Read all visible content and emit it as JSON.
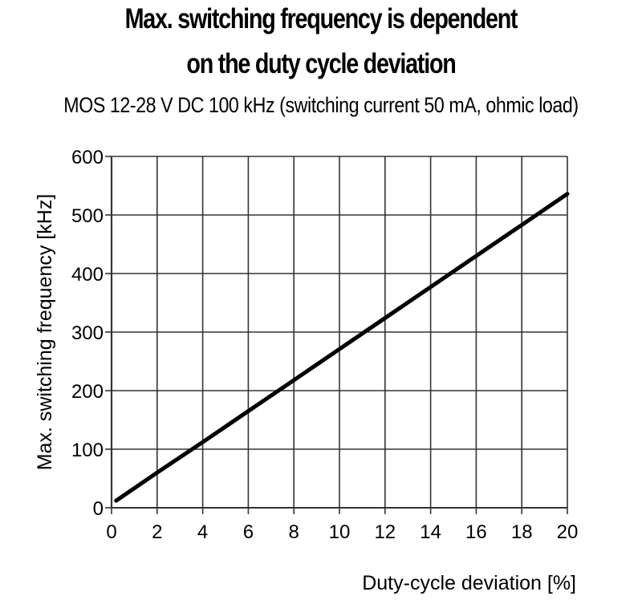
{
  "header": {
    "title_line1": "Max. switching frequency is dependent",
    "title_line2": "on the duty cycle deviation",
    "subtitle": "MOS 12-28 V DC 100 kHz (switching current 50 mA, ohmic load)"
  },
  "axes": {
    "xlabel": "Duty-cycle deviation [%]",
    "ylabel": "Max. switching frequency [kHz]",
    "x_ticks": [
      "0",
      "2",
      "4",
      "6",
      "8",
      "10",
      "12",
      "14",
      "16",
      "18",
      "20"
    ],
    "y_ticks": [
      "0",
      "100",
      "200",
      "300",
      "400",
      "500",
      "600"
    ]
  },
  "colors": {
    "line": "#000000",
    "grid": "#333333",
    "background": "#ffffff"
  },
  "chart_data": {
    "type": "line",
    "title": "Max. switching frequency is dependent on the duty cycle deviation",
    "subtitle": "MOS 12-28 V DC 100 kHz (switching current 50 mA, ohmic load)",
    "xlabel": "Duty-cycle deviation [%]",
    "ylabel": "Max. switching frequency [kHz]",
    "xlim": [
      0,
      20
    ],
    "ylim": [
      0,
      600
    ],
    "x_ticks": [
      0,
      2,
      4,
      6,
      8,
      10,
      12,
      14,
      16,
      18,
      20
    ],
    "y_ticks": [
      0,
      100,
      200,
      300,
      400,
      500,
      600
    ],
    "grid": true,
    "legend": null,
    "series": [
      {
        "name": "MOS 12-28 V DC 100 kHz",
        "x": [
          0.2,
          2,
          4,
          6,
          8,
          10,
          12,
          14,
          16,
          18,
          20
        ],
        "y": [
          12,
          60,
          112,
          165,
          218,
          271,
          324,
          377,
          430,
          483,
          536
        ]
      }
    ]
  }
}
